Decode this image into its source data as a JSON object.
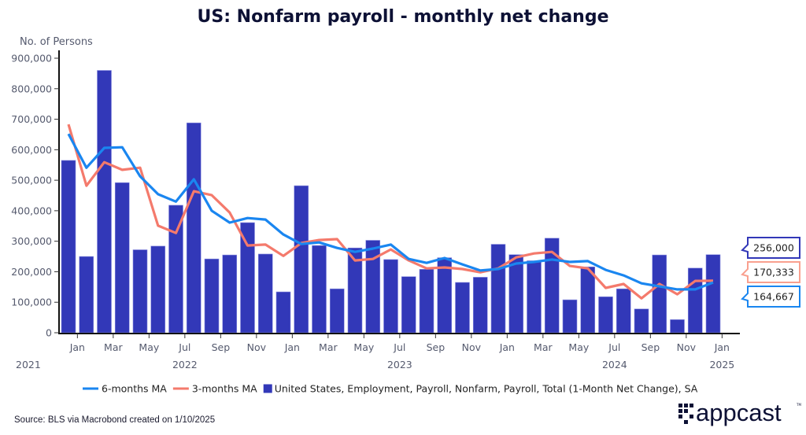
{
  "chart_data": {
    "type": "bar",
    "title": "US: Nonfarm payroll - monthly net change",
    "ylabel": "No. of Persons",
    "xlabel": "",
    "ylim": [
      0,
      900000
    ],
    "yticks": [
      0,
      100000,
      200000,
      300000,
      400000,
      500000,
      600000,
      700000,
      800000,
      900000
    ],
    "ytick_labels": [
      "0",
      "100,000",
      "200,000",
      "300,000",
      "400,000",
      "500,000",
      "600,000",
      "700,000",
      "800,000",
      "900,000"
    ],
    "grid": false,
    "x": [
      "2021-12",
      "2022-01",
      "2022-02",
      "2022-03",
      "2022-04",
      "2022-05",
      "2022-06",
      "2022-07",
      "2022-08",
      "2022-09",
      "2022-10",
      "2022-11",
      "2022-12",
      "2023-01",
      "2023-02",
      "2023-03",
      "2023-04",
      "2023-05",
      "2023-06",
      "2023-07",
      "2023-08",
      "2023-09",
      "2023-10",
      "2023-11",
      "2023-12",
      "2024-01",
      "2024-02",
      "2024-03",
      "2024-04",
      "2024-05",
      "2024-06",
      "2024-07",
      "2024-08",
      "2024-09",
      "2024-10",
      "2024-11",
      "2024-12"
    ],
    "xtick_labels": [
      {
        "month_index": 1,
        "label": "Jan"
      },
      {
        "month_index": 3,
        "label": "Mar"
      },
      {
        "month_index": 5,
        "label": "May"
      },
      {
        "month_index": 7,
        "label": "Jul"
      },
      {
        "month_index": 9,
        "label": "Sep"
      },
      {
        "month_index": 11,
        "label": "Nov"
      },
      {
        "month_index": 13,
        "label": "Jan"
      },
      {
        "month_index": 15,
        "label": "Mar"
      },
      {
        "month_index": 17,
        "label": "May"
      },
      {
        "month_index": 19,
        "label": "Jul"
      },
      {
        "month_index": 21,
        "label": "Sep"
      },
      {
        "month_index": 23,
        "label": "Nov"
      },
      {
        "month_index": 25,
        "label": "Jan"
      },
      {
        "month_index": 27,
        "label": "Mar"
      },
      {
        "month_index": 29,
        "label": "May"
      },
      {
        "month_index": 31,
        "label": "Jul"
      },
      {
        "month_index": 33,
        "label": "Sep"
      },
      {
        "month_index": 35,
        "label": "Nov"
      },
      {
        "month_index": 37,
        "label": "Jan"
      }
    ],
    "year_labels": [
      {
        "month_index": 0,
        "label": "2021"
      },
      {
        "month_index": 7,
        "label": "2022"
      },
      {
        "month_index": 19,
        "label": "2023"
      },
      {
        "month_index": 31,
        "label": "2024"
      },
      {
        "month_index": 37,
        "label": "2025"
      }
    ],
    "series": [
      {
        "name": "United States, Employment, Payroll, Nonfarm, Payroll, Total (1-Month Net Change), SA",
        "type": "bar",
        "color": "#3238b8",
        "values": [
          565000,
          250000,
          860000,
          492000,
          272000,
          284000,
          418000,
          688000,
          242000,
          255000,
          361000,
          258000,
          134000,
          482000,
          286000,
          144000,
          278000,
          303000,
          240000,
          184000,
          208000,
          246000,
          165000,
          182000,
          290000,
          256000,
          236000,
          310000,
          108000,
          216000,
          118000,
          144000,
          78000,
          255000,
          43000,
          212000,
          256000
        ]
      },
      {
        "name": "6-months MA",
        "type": "line",
        "color": "#1a86f0",
        "values": [
          652000,
          541000,
          606000,
          608000,
          513000,
          454000,
          430000,
          503000,
          400000,
          361000,
          376000,
          371000,
          322000,
          291000,
          296000,
          278000,
          265000,
          276000,
          289000,
          242000,
          229000,
          245000,
          224000,
          204000,
          209000,
          227000,
          232000,
          240000,
          232000,
          235000,
          206000,
          188000,
          162000,
          152000,
          142000,
          142000,
          164667
        ]
      },
      {
        "name": "3-months MA",
        "type": "line",
        "color": "#f47a6c",
        "values": [
          683000,
          482000,
          559000,
          534000,
          541000,
          351000,
          327000,
          464000,
          451000,
          394000,
          286000,
          289000,
          252000,
          294000,
          304000,
          307000,
          237000,
          242000,
          273000,
          237000,
          211000,
          214000,
          209000,
          198000,
          211000,
          247000,
          260000,
          265000,
          219000,
          211000,
          147000,
          160000,
          113000,
          160000,
          126000,
          170000,
          170333
        ]
      }
    ],
    "legend": {
      "placement": "bottom",
      "order": [
        "6-months MA",
        "3-months MA",
        "United States, Employment, Payroll, Nonfarm, Payroll, Total (1-Month Net Change), SA"
      ]
    },
    "callouts": [
      {
        "series": "United States, Employment, Payroll, Nonfarm, Payroll, Total (1-Month Net Change), SA",
        "label": "256,000",
        "color": "#3238b8"
      },
      {
        "series": "3-months MA",
        "label": "170,333",
        "color": "#f9a08f"
      },
      {
        "series": "6-months MA",
        "label": "164,667",
        "color": "#1a86f0"
      }
    ]
  },
  "footer": {
    "source": "Source: BLS via Macrobond created on 1/10/2025",
    "logo_text": "appcast",
    "logo_mark": "TM"
  }
}
